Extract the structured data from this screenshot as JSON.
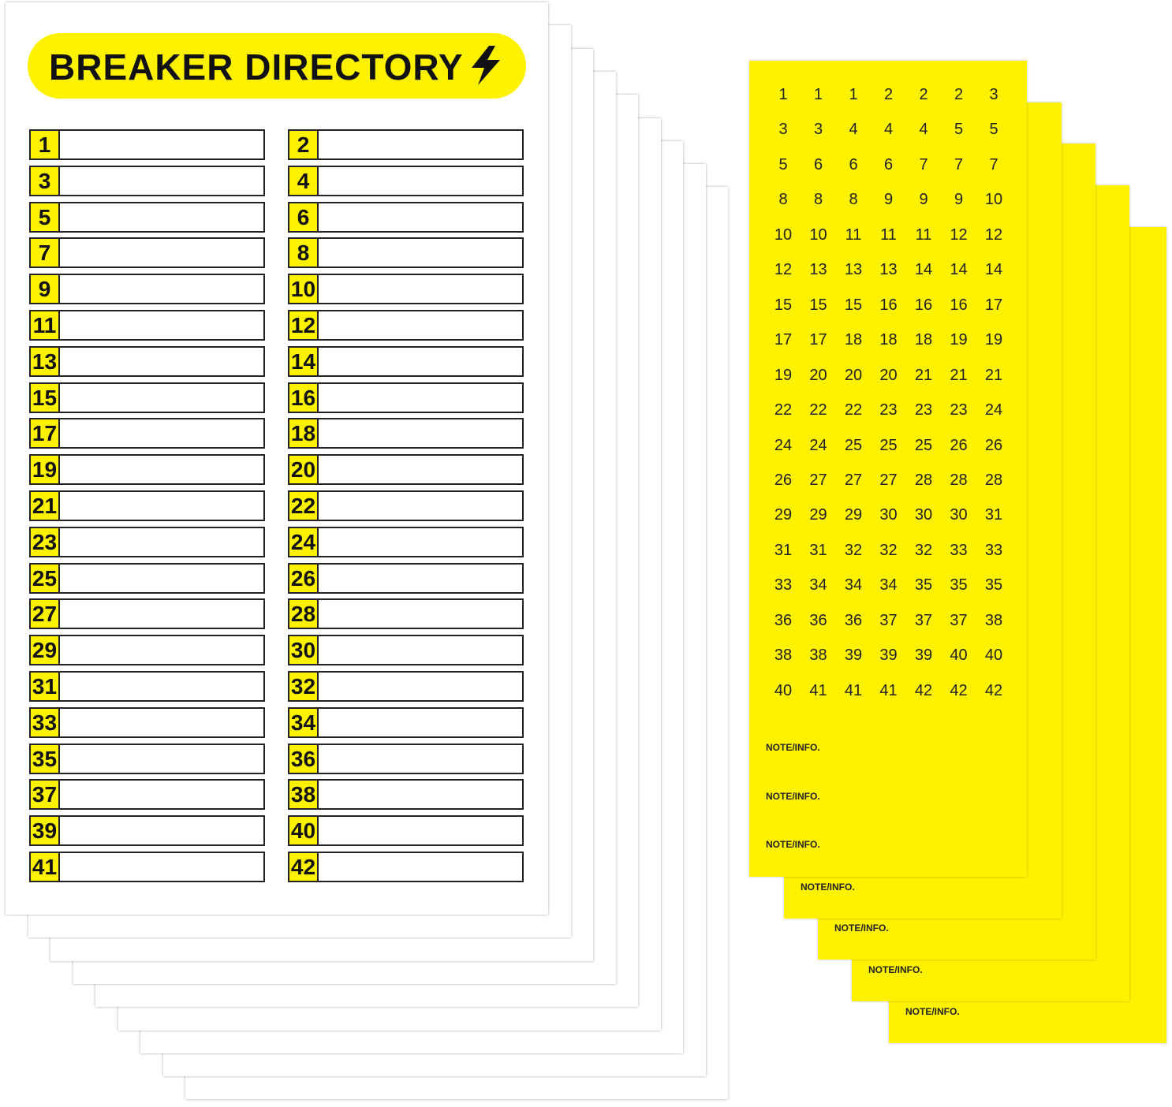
{
  "directory": {
    "title": "BREAKER DIRECTORY",
    "slots": [
      1,
      2,
      3,
      4,
      5,
      6,
      7,
      8,
      9,
      10,
      11,
      12,
      13,
      14,
      15,
      16,
      17,
      18,
      19,
      20,
      21,
      22,
      23,
      24,
      25,
      26,
      27,
      28,
      29,
      30,
      31,
      32,
      33,
      34,
      35,
      36,
      37,
      38,
      39,
      40,
      41,
      42
    ]
  },
  "labels": {
    "rows": [
      [
        1,
        1,
        1,
        2,
        2,
        2,
        3
      ],
      [
        3,
        3,
        4,
        4,
        4,
        5,
        5
      ],
      [
        5,
        6,
        6,
        6,
        7,
        7,
        7
      ],
      [
        8,
        8,
        8,
        9,
        9,
        9,
        10
      ],
      [
        10,
        10,
        11,
        11,
        11,
        12,
        12
      ],
      [
        12,
        13,
        13,
        13,
        14,
        14,
        14
      ],
      [
        15,
        15,
        15,
        16,
        16,
        16,
        17
      ],
      [
        17,
        17,
        18,
        18,
        18,
        19,
        19
      ],
      [
        19,
        20,
        20,
        20,
        21,
        21,
        21
      ],
      [
        22,
        22,
        22,
        23,
        23,
        23,
        24
      ],
      [
        24,
        24,
        25,
        25,
        25,
        26,
        26
      ],
      [
        26,
        27,
        27,
        27,
        28,
        28,
        28
      ],
      [
        29,
        29,
        29,
        30,
        30,
        30,
        31
      ],
      [
        31,
        31,
        32,
        32,
        32,
        33,
        33
      ],
      [
        33,
        34,
        34,
        34,
        35,
        35,
        35
      ],
      [
        36,
        36,
        36,
        37,
        37,
        37,
        38
      ],
      [
        38,
        38,
        39,
        39,
        39,
        40,
        40
      ],
      [
        40,
        41,
        41,
        41,
        42,
        42,
        42
      ]
    ],
    "notes": [
      "NOTE/INFO.",
      "NOTE/INFO.",
      "NOTE/INFO."
    ]
  },
  "back_labels": {
    "notes": [
      "NOTE/INFO.",
      "NOTE/INFO.",
      "NOTE/INFO.",
      "NOTE/INFO."
    ]
  }
}
